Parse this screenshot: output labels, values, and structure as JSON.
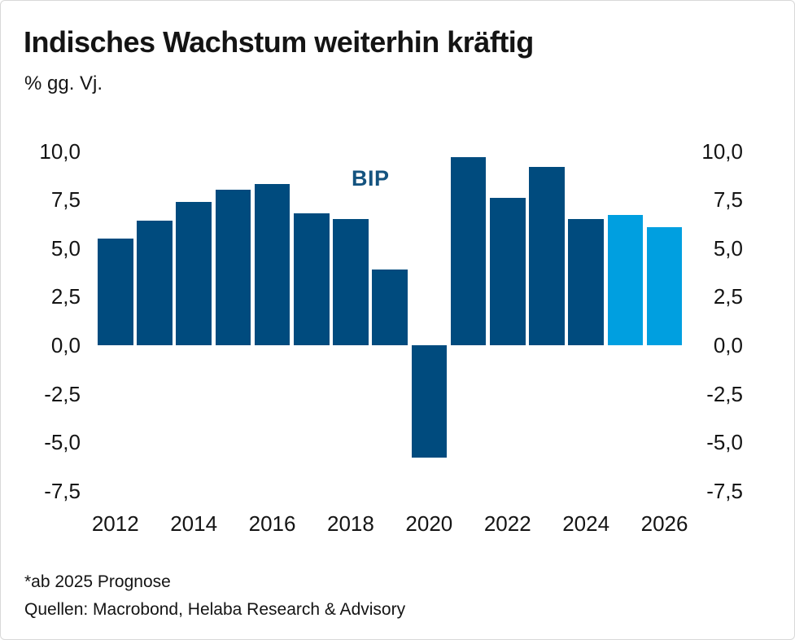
{
  "card": {
    "title": "Indisches Wachstum weiterhin kräftig",
    "subtitle": "% gg. Vj.",
    "footnote": "*ab 2025 Prognose",
    "sources": "Quellen: Macrobond, Helaba Research & Advisory"
  },
  "chart_data": {
    "type": "bar",
    "title": "Indisches Wachstum weiterhin kräftig",
    "ylabel": "% gg. Vj.",
    "series_label": "BIP",
    "categories": [
      2012,
      2013,
      2014,
      2015,
      2016,
      2017,
      2018,
      2019,
      2020,
      2021,
      2022,
      2023,
      2024,
      2025,
      2026
    ],
    "values": [
      5.5,
      6.4,
      7.4,
      8.0,
      8.3,
      6.8,
      6.5,
      3.9,
      -5.8,
      9.7,
      7.6,
      9.2,
      6.5,
      6.7,
      6.1
    ],
    "forecast_from": 2025,
    "forecast_note": "*ab 2025 Prognose",
    "x_tick_labels": [
      "2012",
      "2014",
      "2016",
      "2018",
      "2020",
      "2022",
      "2024",
      "2026"
    ],
    "y_ticks": [
      10,
      7.5,
      5,
      2.5,
      0,
      -2.5,
      -5,
      -7.5
    ],
    "y_tick_labels": [
      "10,0",
      "7,5",
      "5,0",
      "2,5",
      "0,0",
      "-2,5",
      "-5,0",
      "-7,5"
    ],
    "ylim": [
      -7.5,
      10
    ],
    "grid": false,
    "legend_position": "inside-top-center",
    "colors": {
      "bar": "#004b7e",
      "forecast_bar": "#009fe0",
      "annotation": "#14537f",
      "text": "#141414"
    }
  }
}
